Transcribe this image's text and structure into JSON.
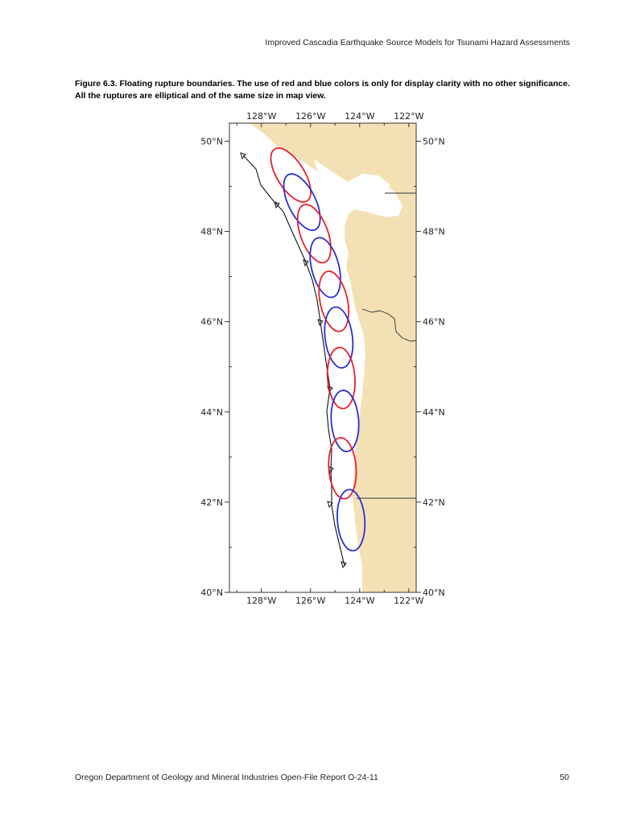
{
  "header": {
    "running_title": "Improved Cascadia Earthquake Source Models for Tsunami Hazard Assessments"
  },
  "figure": {
    "caption": "Figure 6.3. Floating rupture boundaries. The use of red and blue colors is only for display clarity with no other significance. All the ruptures are elliptical and of the same size in map view.",
    "map": {
      "lon_range": [
        -129.3,
        -121.7
      ],
      "lat_range": [
        40,
        50.4
      ],
      "lon_ticks": [
        -128,
        -126,
        -124,
        -122
      ],
      "lon_tick_labels": [
        "128°W",
        "126°W",
        "124°W",
        "122°W"
      ],
      "lat_ticks": [
        50,
        48,
        46,
        44,
        42,
        40
      ],
      "lat_tick_labels": [
        "50°N",
        "48°N",
        "46°N",
        "44°N",
        "42°N",
        "40°N"
      ],
      "colors": {
        "land": "#f3e1b5",
        "sea": "#ffffff",
        "red_rupture": "#e8202a",
        "blue_rupture": "#2a2fd8",
        "trench": "#111111",
        "border": "#333333"
      },
      "ruptures": [
        {
          "color": "red",
          "center": [
            -126.8,
            49.25
          ]
        },
        {
          "color": "blue",
          "center": [
            -126.35,
            48.65
          ]
        },
        {
          "color": "red",
          "center": [
            -125.85,
            47.95
          ]
        },
        {
          "color": "blue",
          "center": [
            -125.4,
            47.2
          ]
        },
        {
          "color": "red",
          "center": [
            -125.05,
            46.45
          ]
        },
        {
          "color": "blue",
          "center": [
            -124.85,
            45.65
          ]
        },
        {
          "color": "red",
          "center": [
            -124.75,
            44.75
          ]
        },
        {
          "color": "blue",
          "center": [
            -124.6,
            43.8
          ]
        },
        {
          "color": "red",
          "center": [
            -124.7,
            42.75
          ]
        },
        {
          "color": "blue",
          "center": [
            -124.35,
            41.6
          ]
        }
      ]
    }
  },
  "footer": {
    "left": "Oregon Department of Geology and Mineral Industries Open-File Report O-24-11",
    "page_number": "50"
  }
}
